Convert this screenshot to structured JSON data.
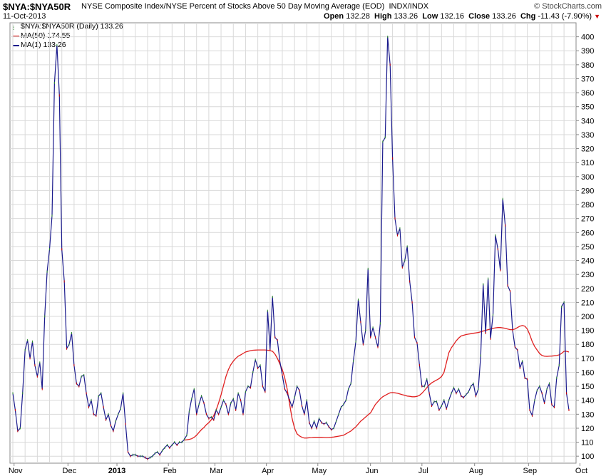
{
  "header": {
    "symbol": "$NYA:$NYA50R",
    "description": "NYSE Composite Index/NYSE Percent of Stocks Above 50 Day Moving Average (EOD)",
    "exchange": "INDX/INDX",
    "date": "11-Oct-2013",
    "brand": "© StockCharts.com",
    "open_label": "Open",
    "open": "132.28",
    "high_label": "High",
    "high": "133.26",
    "low_label": "Low",
    "low": "132.16",
    "close_label": "Close",
    "close": "133.26",
    "chg_label": "Chg",
    "chg": "-11.43 (-7.90%)",
    "chg_arrow": "▼"
  },
  "legend": {
    "main": "$NYA:$NYA50R (Daily) 133.26",
    "ma50": "MA(50) 174.55",
    "ma1": "MA(1) 133.26"
  },
  "colors": {
    "price": "#1a1a8c",
    "ma50": "#e02020",
    "grid": "#d9d9d9",
    "up": "#2b8a2b",
    "down": "#cc0000",
    "axis": "#888888"
  },
  "chart_data": {
    "type": "line",
    "x_labels": [
      "Nov",
      "Dec",
      "2013",
      "Feb",
      "Mar",
      "Apr",
      "May",
      "Jun",
      "Jul",
      "Aug",
      "Sep",
      "Oct"
    ],
    "x_label_positions": [
      0.5,
      22.5,
      42.5,
      63.5,
      82.5,
      103.5,
      124.5,
      146,
      167,
      188.5,
      210.5,
      231.5
    ],
    "ylim": [
      95,
      410
    ],
    "y_ticks": [
      100,
      110,
      120,
      130,
      140,
      150,
      160,
      170,
      180,
      190,
      200,
      210,
      220,
      230,
      240,
      250,
      260,
      270,
      280,
      290,
      300,
      310,
      320,
      330,
      340,
      350,
      360,
      370,
      380,
      390,
      400
    ],
    "grid": true,
    "y_axis_side": "right",
    "series": [
      {
        "name": "MA(1)",
        "values": [
          145,
          133,
          118,
          120,
          145,
          176,
          183,
          170,
          182,
          165,
          157,
          167,
          148,
          200,
          232,
          248,
          272,
          367,
          394,
          358,
          248,
          225,
          177,
          180,
          188,
          165,
          152,
          150,
          157,
          158,
          145,
          135,
          140,
          130,
          129,
          143,
          145,
          135,
          126,
          130,
          122,
          118,
          125,
          130,
          134,
          145,
          123,
          103,
          100,
          101,
          101,
          100,
          100,
          100,
          99,
          98,
          99,
          100,
          102,
          103,
          101,
          104,
          106,
          108,
          106,
          108,
          110,
          108,
          110,
          110,
          112,
          115,
          132,
          141,
          148,
          130,
          137,
          143,
          138,
          130,
          127,
          128,
          126,
          133,
          130,
          135,
          140,
          137,
          130,
          138,
          141,
          133,
          145,
          140,
          130,
          146,
          150,
          149,
          160,
          169,
          163,
          165,
          150,
          146,
          204,
          176,
          214,
          185,
          183,
          168,
          158,
          148,
          145,
          140,
          135,
          142,
          150,
          147,
          136,
          130,
          140,
          124,
          120,
          125,
          120,
          127,
          124,
          123,
          124,
          121,
          119,
          120,
          125,
          130,
          135,
          137,
          140,
          148,
          152,
          168,
          182,
          212,
          196,
          180,
          190,
          234,
          185,
          192,
          185,
          178,
          195,
          325,
          328,
          400,
          380,
          313,
          270,
          258,
          263,
          235,
          240,
          250,
          225,
          210,
          185,
          181,
          165,
          150,
          150,
          155,
          145,
          136,
          139,
          139,
          133,
          136,
          140,
          134,
          140,
          145,
          149,
          145,
          148,
          143,
          142,
          144,
          146,
          150,
          152,
          143,
          148,
          172,
          223,
          188,
          227,
          184,
          201,
          258,
          248,
          233,
          284,
          265,
          222,
          218,
          190,
          178,
          176,
          163,
          168,
          156,
          155,
          133,
          129,
          140,
          147,
          150,
          145,
          138,
          148,
          152,
          137,
          135,
          156,
          165,
          207,
          210,
          145,
          133
        ]
      },
      {
        "name": "MA(50)",
        "values": [
          111.5,
          111.7,
          112,
          112.5,
          113.5,
          115,
          117,
          119,
          120.5,
          122.5,
          124,
          126,
          129,
          133,
          138,
          144,
          150.5,
          157,
          162,
          165.5,
          168,
          170,
          171.5,
          172.5,
          173.5,
          174.5,
          175,
          175.5,
          175.8,
          175.9,
          176,
          176,
          176,
          176,
          175.8,
          175.5,
          175,
          173,
          170,
          166,
          162,
          156,
          148,
          137,
          127,
          120,
          116,
          114.5,
          113.5,
          113,
          113,
          113.2,
          113.3,
          113.5,
          113.5,
          113.5,
          113.5,
          113.4,
          113.3,
          113.4,
          113.5,
          113.7,
          114,
          114.3,
          114.6,
          115,
          116,
          117,
          118,
          119.5,
          121,
          123,
          125,
          126.5,
          128,
          129.5,
          131,
          134,
          137,
          139,
          141,
          142.5,
          143.5,
          144.5,
          145.3,
          145.5,
          145.3,
          145,
          144.5,
          144,
          143.5,
          143,
          142.8,
          142.5,
          142.5,
          142.8,
          143.5,
          145,
          147,
          149,
          151,
          152.5,
          153.5,
          154.5,
          155.5,
          157,
          160,
          167,
          174,
          177.5,
          180,
          182.5,
          184.5,
          186,
          186.5,
          187,
          187.3,
          187.6,
          187.9,
          188.2,
          188.5,
          189,
          189.5,
          190,
          190.5,
          191,
          191.5,
          191.8,
          192,
          192,
          191.8,
          191.5,
          191,
          190.5,
          190.5,
          191,
          192,
          193,
          193.5,
          193,
          191,
          187,
          182,
          178.5,
          176,
          173.5,
          172,
          171.5,
          171.4,
          171.5,
          171.6,
          171.8,
          172,
          172.5,
          173.5,
          175,
          175,
          174.5
        ]
      }
    ]
  }
}
